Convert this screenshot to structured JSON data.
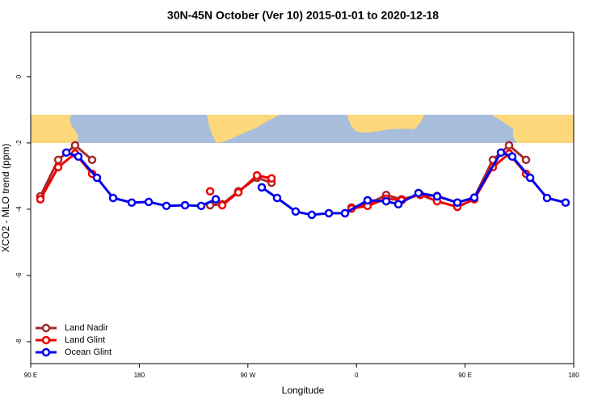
{
  "chart_data": {
    "type": "line",
    "title": "30N-45N October (Ver 10)   2015-01-01 to 2020-12-18",
    "x_label": "Longitude",
    "y_label": "XCO2 - MLO trend (ppm)",
    "xlim": [
      90,
      540
    ],
    "ylim": [
      -8.66,
      1.34
    ],
    "xticks": [
      {
        "value": 90,
        "label": "90 E"
      },
      {
        "value": 180,
        "label": "180"
      },
      {
        "value": 270,
        "label": "90 W"
      },
      {
        "value": 360,
        "label": "0"
      },
      {
        "value": 450,
        "label": "90 E"
      },
      {
        "value": 540,
        "label": "180"
      }
    ],
    "yticks": [
      0,
      -2,
      -4,
      -6,
      -8
    ],
    "legend": "bottom-left",
    "series": [
      {
        "name": "Land Nadir",
        "color": "#a52a2a",
        "x": [
          98,
          112.8,
          126.8,
          140.9,
          200,
          238.7,
          248.7,
          262.1,
          277.5,
          289.6,
          320,
          355.9,
          369.2,
          384.6,
          397.4,
          412.8,
          426.8,
          443.6,
          457.6,
          473,
          486.4,
          500.5
        ],
        "values": [
          -3.61,
          -2.51,
          -2.07,
          -2.51,
          null,
          -3.88,
          -3.85,
          -3.46,
          -3.05,
          -3.2,
          null,
          -3.95,
          -3.85,
          -3.57,
          -3.7,
          -3.57,
          -3.6,
          -3.8,
          -3.65,
          -2.51,
          -2.07,
          -2.51
        ]
      },
      {
        "name": "Land Glint",
        "color": "#ee0000",
        "x": [
          98,
          112.8,
          126.8,
          140.9,
          200,
          238.7,
          243,
          248.7,
          262.1,
          277.5,
          289.6,
          320,
          355.9,
          369.2,
          384.6,
          397.4,
          412.8,
          426.8,
          443.6,
          457.6,
          473,
          486.4,
          500.5
        ],
        "values": [
          -3.7,
          -2.73,
          -2.32,
          -2.93,
          null,
          -3.46,
          null,
          -3.88,
          -3.49,
          -2.98,
          -3.07,
          null,
          -3.98,
          -3.9,
          -3.68,
          -3.73,
          -3.56,
          -3.76,
          -3.93,
          -3.7,
          -2.73,
          -2.32,
          -2.93
        ]
      },
      {
        "name": "Ocean Glint",
        "color": "#0000ee",
        "x": [
          119.5,
          129.5,
          144.9,
          158.3,
          173.7,
          187.8,
          202.5,
          217.9,
          231.3,
          243.4,
          260,
          281.5,
          294.2,
          309.6,
          323,
          337.1,
          350.5,
          369.2,
          384.6,
          394.7,
          411.4,
          426.8,
          443.6,
          457.6,
          479.7,
          489.1,
          503.9,
          517.9,
          533.3
        ],
        "values": [
          -2.29,
          -2.41,
          -3.05,
          -3.66,
          -3.8,
          -3.78,
          -3.9,
          -3.88,
          -3.9,
          -3.7,
          null,
          -3.34,
          -3.66,
          -4.07,
          -4.17,
          -4.12,
          -4.12,
          -3.73,
          -3.76,
          -3.85,
          -3.51,
          -3.61,
          -3.8,
          -3.65,
          -2.29,
          -2.41,
          -3.05,
          -3.66,
          -3.8
        ]
      }
    ]
  }
}
